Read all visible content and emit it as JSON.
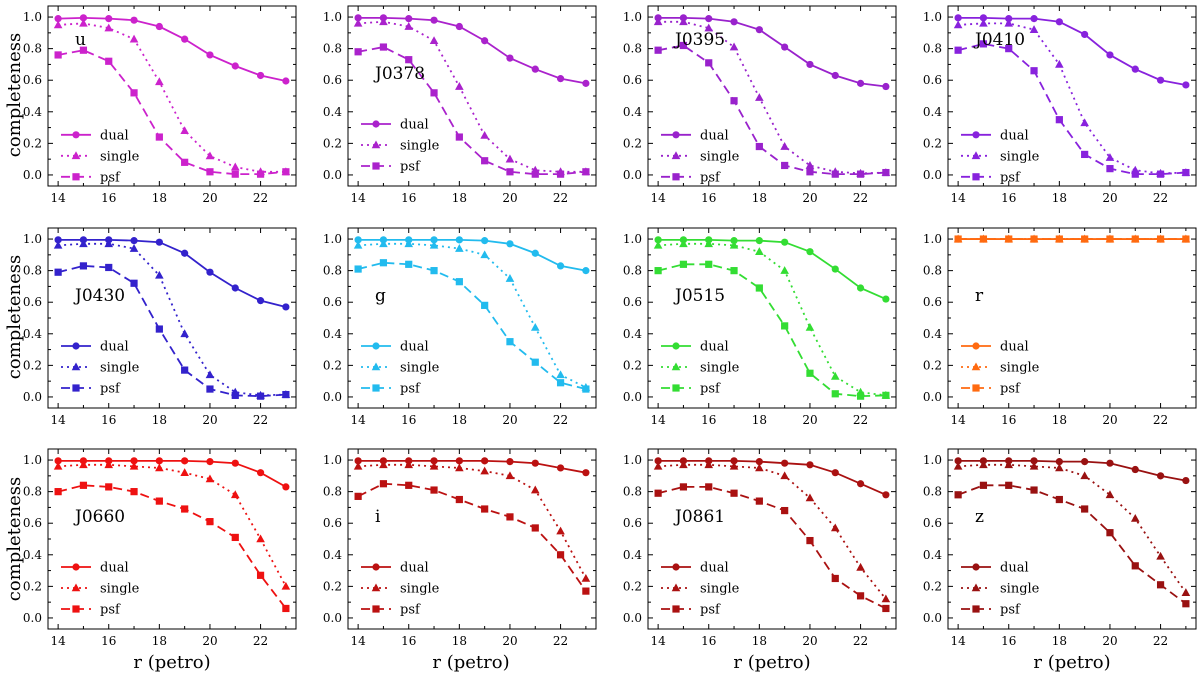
{
  "figure": {
    "ylabel": "completeness",
    "xlabel": "r (petro)",
    "legend_entries": [
      "dual",
      "single",
      "psf"
    ],
    "xticks": [
      14,
      16,
      18,
      20,
      22
    ],
    "yticks": [
      "0.0",
      "0.2",
      "0.4",
      "0.6",
      "0.8",
      "1.0"
    ]
  },
  "chart_data": [
    {
      "type": "line",
      "title": "u",
      "color": "#cc22cc",
      "x": [
        14,
        15,
        16,
        17,
        18,
        19,
        20,
        21,
        22,
        23
      ],
      "xlim": [
        13.6,
        23.4
      ],
      "ylim": [
        -0.07,
        1.07
      ],
      "series": [
        {
          "name": "dual",
          "values": [
            0.99,
            0.995,
            0.99,
            0.98,
            0.94,
            0.86,
            0.76,
            0.69,
            0.63,
            0.595
          ]
        },
        {
          "name": "single",
          "values": [
            0.95,
            0.96,
            0.93,
            0.86,
            0.59,
            0.28,
            0.12,
            0.05,
            0.02,
            0.02
          ]
        },
        {
          "name": "psf",
          "values": [
            0.76,
            0.79,
            0.72,
            0.52,
            0.24,
            0.08,
            0.02,
            0.005,
            0.005,
            0.02
          ]
        }
      ]
    },
    {
      "type": "line",
      "title": "J0378",
      "color": "#aa22cc",
      "x": [
        14,
        15,
        16,
        17,
        18,
        19,
        20,
        21,
        22,
        23
      ],
      "xlim": [
        13.6,
        23.4
      ],
      "ylim": [
        -0.07,
        1.07
      ],
      "series": [
        {
          "name": "dual",
          "values": [
            0.995,
            0.995,
            0.99,
            0.98,
            0.94,
            0.85,
            0.74,
            0.67,
            0.61,
            0.58
          ]
        },
        {
          "name": "single",
          "values": [
            0.96,
            0.97,
            0.94,
            0.85,
            0.56,
            0.25,
            0.1,
            0.03,
            0.02,
            0.02
          ]
        },
        {
          "name": "psf",
          "values": [
            0.78,
            0.81,
            0.73,
            0.52,
            0.24,
            0.09,
            0.02,
            0.005,
            0.005,
            0.02
          ]
        }
      ]
    },
    {
      "type": "line",
      "title": "J0395",
      "color": "#9922cc",
      "x": [
        14,
        15,
        16,
        17,
        18,
        19,
        20,
        21,
        22,
        23
      ],
      "xlim": [
        13.6,
        23.4
      ],
      "ylim": [
        -0.07,
        1.07
      ],
      "series": [
        {
          "name": "dual",
          "values": [
            0.995,
            0.995,
            0.99,
            0.97,
            0.92,
            0.81,
            0.7,
            0.63,
            0.58,
            0.56
          ]
        },
        {
          "name": "single",
          "values": [
            0.97,
            0.97,
            0.93,
            0.81,
            0.49,
            0.18,
            0.06,
            0.02,
            0.01,
            0.015
          ]
        },
        {
          "name": "psf",
          "values": [
            0.79,
            0.82,
            0.71,
            0.47,
            0.18,
            0.06,
            0.02,
            0.005,
            0.005,
            0.015
          ]
        }
      ]
    },
    {
      "type": "line",
      "title": "J0410",
      "color": "#8822dd",
      "x": [
        14,
        15,
        16,
        17,
        18,
        19,
        20,
        21,
        22,
        23
      ],
      "xlim": [
        13.6,
        23.4
      ],
      "ylim": [
        -0.07,
        1.07
      ],
      "series": [
        {
          "name": "dual",
          "values": [
            0.995,
            0.995,
            0.99,
            0.99,
            0.97,
            0.89,
            0.76,
            0.67,
            0.6,
            0.57
          ]
        },
        {
          "name": "single",
          "values": [
            0.95,
            0.96,
            0.96,
            0.92,
            0.7,
            0.33,
            0.11,
            0.03,
            0.01,
            0.015
          ]
        },
        {
          "name": "psf",
          "values": [
            0.79,
            0.83,
            0.8,
            0.66,
            0.35,
            0.13,
            0.04,
            0.005,
            0.005,
            0.015
          ]
        }
      ]
    },
    {
      "type": "line",
      "title": "J0430",
      "color": "#3322cc",
      "x": [
        14,
        15,
        16,
        17,
        18,
        19,
        20,
        21,
        22,
        23
      ],
      "xlim": [
        13.6,
        23.4
      ],
      "ylim": [
        -0.07,
        1.07
      ],
      "series": [
        {
          "name": "dual",
          "values": [
            0.995,
            0.995,
            0.995,
            0.99,
            0.98,
            0.91,
            0.79,
            0.69,
            0.61,
            0.57
          ]
        },
        {
          "name": "single",
          "values": [
            0.96,
            0.97,
            0.97,
            0.94,
            0.77,
            0.4,
            0.14,
            0.03,
            0.01,
            0.015
          ]
        },
        {
          "name": "psf",
          "values": [
            0.79,
            0.83,
            0.82,
            0.72,
            0.43,
            0.17,
            0.05,
            0.01,
            0.005,
            0.015
          ]
        }
      ]
    },
    {
      "type": "line",
      "title": "g",
      "color": "#22bbee",
      "x": [
        14,
        15,
        16,
        17,
        18,
        19,
        20,
        21,
        22,
        23
      ],
      "xlim": [
        13.6,
        23.4
      ],
      "ylim": [
        -0.07,
        1.07
      ],
      "series": [
        {
          "name": "dual",
          "values": [
            0.995,
            0.995,
            0.995,
            0.995,
            0.995,
            0.99,
            0.97,
            0.91,
            0.83,
            0.8
          ]
        },
        {
          "name": "single",
          "values": [
            0.96,
            0.97,
            0.97,
            0.96,
            0.94,
            0.9,
            0.75,
            0.44,
            0.14,
            0.06
          ]
        },
        {
          "name": "psf",
          "values": [
            0.81,
            0.85,
            0.84,
            0.8,
            0.73,
            0.58,
            0.35,
            0.22,
            0.09,
            0.05
          ]
        }
      ]
    },
    {
      "type": "line",
      "title": "J0515",
      "color": "#33dd33",
      "x": [
        14,
        15,
        16,
        17,
        18,
        19,
        20,
        21,
        22,
        23
      ],
      "xlim": [
        13.6,
        23.4
      ],
      "ylim": [
        -0.07,
        1.07
      ],
      "series": [
        {
          "name": "dual",
          "values": [
            0.995,
            0.995,
            0.995,
            0.99,
            0.99,
            0.98,
            0.92,
            0.81,
            0.69,
            0.62
          ]
        },
        {
          "name": "single",
          "values": [
            0.96,
            0.97,
            0.97,
            0.96,
            0.92,
            0.8,
            0.44,
            0.13,
            0.03,
            0.01
          ]
        },
        {
          "name": "psf",
          "values": [
            0.8,
            0.84,
            0.84,
            0.8,
            0.69,
            0.45,
            0.15,
            0.02,
            0.005,
            0.01
          ]
        }
      ]
    },
    {
      "type": "line",
      "title": "r",
      "color": "#ff6a10",
      "x": [
        14,
        15,
        16,
        17,
        18,
        19,
        20,
        21,
        22,
        23
      ],
      "xlim": [
        13.6,
        23.4
      ],
      "ylim": [
        -0.07,
        1.07
      ],
      "series": [
        {
          "name": "dual",
          "values": [
            1,
            1,
            1,
            1,
            1,
            1,
            1,
            1,
            1,
            1
          ]
        },
        {
          "name": "single",
          "values": [
            1,
            1,
            1,
            1,
            1,
            1,
            1,
            1,
            1,
            1
          ]
        },
        {
          "name": "psf",
          "values": [
            1,
            1,
            1,
            1,
            1,
            1,
            1,
            1,
            1,
            1
          ]
        }
      ]
    },
    {
      "type": "line",
      "title": "J0660",
      "color": "#ee1111",
      "x": [
        14,
        15,
        16,
        17,
        18,
        19,
        20,
        21,
        22,
        23
      ],
      "xlim": [
        13.6,
        23.4
      ],
      "ylim": [
        -0.07,
        1.07
      ],
      "series": [
        {
          "name": "dual",
          "values": [
            0.995,
            0.995,
            0.995,
            0.995,
            0.995,
            0.995,
            0.99,
            0.98,
            0.92,
            0.83
          ]
        },
        {
          "name": "single",
          "values": [
            0.96,
            0.97,
            0.97,
            0.96,
            0.95,
            0.92,
            0.88,
            0.78,
            0.5,
            0.2
          ]
        },
        {
          "name": "psf",
          "values": [
            0.8,
            0.84,
            0.83,
            0.8,
            0.74,
            0.69,
            0.61,
            0.51,
            0.27,
            0.06
          ]
        }
      ]
    },
    {
      "type": "line",
      "title": "i",
      "color": "#bb1111",
      "x": [
        14,
        15,
        16,
        17,
        18,
        19,
        20,
        21,
        22,
        23
      ],
      "xlim": [
        13.6,
        23.4
      ],
      "ylim": [
        -0.07,
        1.07
      ],
      "series": [
        {
          "name": "dual",
          "values": [
            0.995,
            0.995,
            0.995,
            0.995,
            0.995,
            0.995,
            0.99,
            0.98,
            0.95,
            0.92
          ]
        },
        {
          "name": "single",
          "values": [
            0.96,
            0.97,
            0.97,
            0.96,
            0.95,
            0.93,
            0.9,
            0.81,
            0.55,
            0.25
          ]
        },
        {
          "name": "psf",
          "values": [
            0.77,
            0.85,
            0.84,
            0.81,
            0.75,
            0.69,
            0.64,
            0.57,
            0.4,
            0.17
          ]
        }
      ]
    },
    {
      "type": "line",
      "title": "J0861",
      "color": "#aa1111",
      "x": [
        14,
        15,
        16,
        17,
        18,
        19,
        20,
        21,
        22,
        23
      ],
      "xlim": [
        13.6,
        23.4
      ],
      "ylim": [
        -0.07,
        1.07
      ],
      "series": [
        {
          "name": "dual",
          "values": [
            0.995,
            0.995,
            0.995,
            0.995,
            0.99,
            0.98,
            0.97,
            0.92,
            0.85,
            0.78
          ]
        },
        {
          "name": "single",
          "values": [
            0.96,
            0.97,
            0.97,
            0.96,
            0.95,
            0.9,
            0.76,
            0.57,
            0.32,
            0.12
          ]
        },
        {
          "name": "psf",
          "values": [
            0.79,
            0.83,
            0.83,
            0.79,
            0.74,
            0.68,
            0.49,
            0.25,
            0.14,
            0.06
          ]
        }
      ]
    },
    {
      "type": "line",
      "title": "z",
      "color": "#991111",
      "x": [
        14,
        15,
        16,
        17,
        18,
        19,
        20,
        21,
        22,
        23
      ],
      "xlim": [
        13.6,
        23.4
      ],
      "ylim": [
        -0.07,
        1.07
      ],
      "series": [
        {
          "name": "dual",
          "values": [
            0.995,
            0.995,
            0.995,
            0.995,
            0.99,
            0.99,
            0.98,
            0.94,
            0.9,
            0.87
          ]
        },
        {
          "name": "single",
          "values": [
            0.96,
            0.97,
            0.97,
            0.96,
            0.95,
            0.9,
            0.78,
            0.63,
            0.39,
            0.16
          ]
        },
        {
          "name": "psf",
          "values": [
            0.78,
            0.84,
            0.84,
            0.81,
            0.75,
            0.69,
            0.54,
            0.33,
            0.21,
            0.09
          ]
        }
      ]
    }
  ]
}
